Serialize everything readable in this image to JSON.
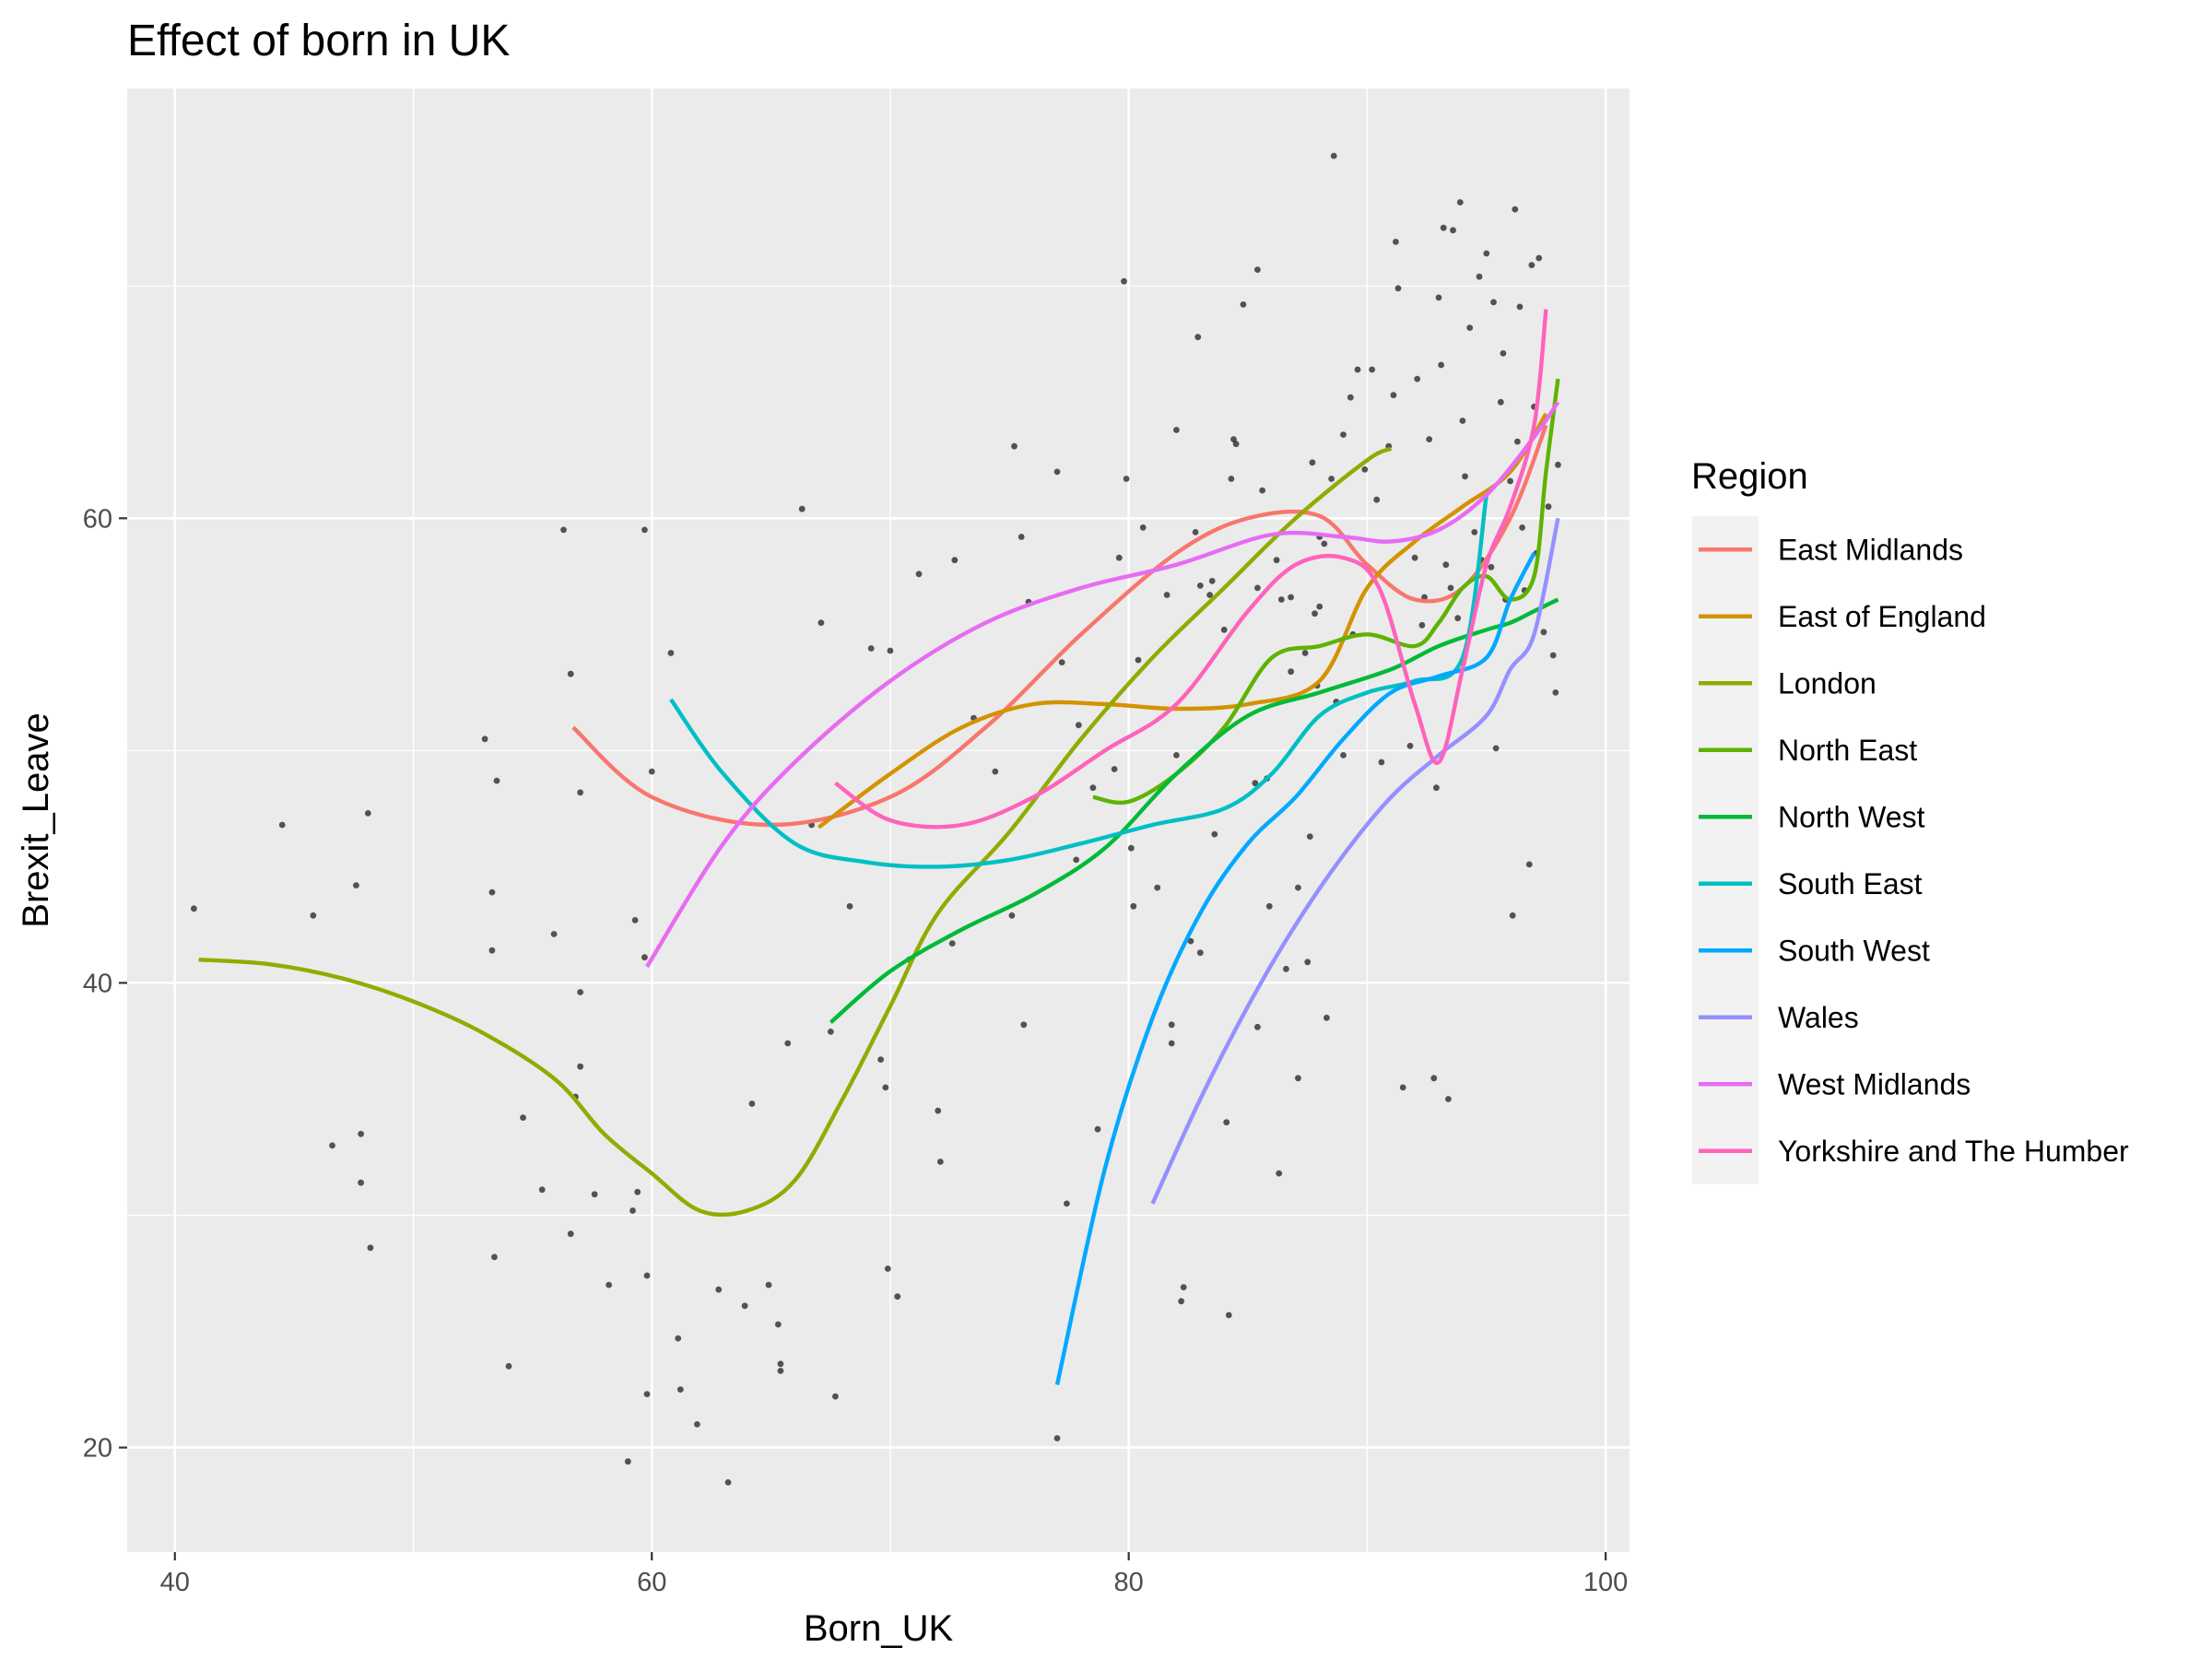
{
  "chart_data": {
    "type": "scatter",
    "title": "Effect of born in UK",
    "xlabel": "Born_UK",
    "ylabel": "Brexit_Leave",
    "xlim": [
      38,
      101
    ],
    "ylim": [
      15.5,
      78.5
    ],
    "x_ticks": [
      40,
      60,
      80,
      100
    ],
    "y_ticks": [
      20,
      40,
      60
    ],
    "grid": true,
    "legend_title": "Region",
    "legend_position": "right",
    "points": [
      [
        40.8,
        43.2
      ],
      [
        44.5,
        46.8
      ],
      [
        45.8,
        42.9
      ],
      [
        46.6,
        33
      ],
      [
        47.6,
        44.2
      ],
      [
        47.8,
        33.5
      ],
      [
        47.8,
        31.4
      ],
      [
        48.1,
        47.3
      ],
      [
        48.2,
        28.6
      ],
      [
        53,
        50.5
      ],
      [
        53.3,
        43.9
      ],
      [
        53.3,
        41.4
      ],
      [
        53.4,
        28.2
      ],
      [
        53.5,
        48.7
      ],
      [
        54,
        23.5
      ],
      [
        54.6,
        34.2
      ],
      [
        55.4,
        31.1
      ],
      [
        55.9,
        42.1
      ],
      [
        56.3,
        59.5
      ],
      [
        56.6,
        53.3
      ],
      [
        56.6,
        29.2
      ],
      [
        56.8,
        35.1
      ],
      [
        57,
        48.2
      ],
      [
        57,
        39.6
      ],
      [
        57,
        36.4
      ],
      [
        57.6,
        30.9
      ],
      [
        58.2,
        27
      ],
      [
        59,
        19.4
      ],
      [
        59.2,
        30.2
      ],
      [
        59.3,
        42.7
      ],
      [
        59.4,
        31
      ],
      [
        59.7,
        59.5
      ],
      [
        59.7,
        41.1
      ],
      [
        59.8,
        27.4
      ],
      [
        59.8,
        22.3
      ],
      [
        60,
        49.1
      ],
      [
        60.8,
        54.2
      ],
      [
        61.1,
        24.7
      ],
      [
        61.2,
        22.5
      ],
      [
        61.9,
        21
      ],
      [
        62.8,
        26.8
      ],
      [
        63.2,
        18.5
      ],
      [
        63.9,
        26.1
      ],
      [
        64.2,
        34.8
      ],
      [
        64.9,
        27
      ],
      [
        65.3,
        25.3
      ],
      [
        65.4,
        23.3
      ],
      [
        65.4,
        23.6
      ],
      [
        65.7,
        37.4
      ],
      [
        66.3,
        60.4
      ],
      [
        66.7,
        46.8
      ],
      [
        67.1,
        55.5
      ],
      [
        67.5,
        37.9
      ],
      [
        67.7,
        22.2
      ],
      [
        68.3,
        43.3
      ],
      [
        69.2,
        54.4
      ],
      [
        69.6,
        36.7
      ],
      [
        69.8,
        35.5
      ],
      [
        69.9,
        27.7
      ],
      [
        70,
        54.3
      ],
      [
        70.3,
        26.5
      ],
      [
        70.8,
        41
      ],
      [
        71.2,
        57.6
      ],
      [
        72,
        34.5
      ],
      [
        72.1,
        32.3
      ],
      [
        72.6,
        41.7
      ],
      [
        72.7,
        58.2
      ],
      [
        73.5,
        51.4
      ],
      [
        74.4,
        49.1
      ],
      [
        75.1,
        42.9
      ],
      [
        75.2,
        63.1
      ],
      [
        75.5,
        59.2
      ],
      [
        75.6,
        38.2
      ],
      [
        75.8,
        56.4
      ],
      [
        77,
        62
      ],
      [
        77,
        20.4
      ],
      [
        77.2,
        53.8
      ],
      [
        77.4,
        30.5
      ],
      [
        77.8,
        45.3
      ],
      [
        77.9,
        51.1
      ],
      [
        78.5,
        48.4
      ],
      [
        78.7,
        33.7
      ],
      [
        79.4,
        49.2
      ],
      [
        79.6,
        58.3
      ],
      [
        79.8,
        70.2
      ],
      [
        79.9,
        61.7
      ],
      [
        80.1,
        45.8
      ],
      [
        80.2,
        43.3
      ],
      [
        80.4,
        53.9
      ],
      [
        80.6,
        59.6
      ],
      [
        81.2,
        44.1
      ],
      [
        81.6,
        56.7
      ],
      [
        81.8,
        38.2
      ],
      [
        81.8,
        37.4
      ],
      [
        82,
        49.8
      ],
      [
        82,
        63.8
      ],
      [
        82.2,
        26.3
      ],
      [
        82.3,
        26.9
      ],
      [
        82.6,
        41.8
      ],
      [
        82.8,
        59.4
      ],
      [
        82.9,
        67.8
      ],
      [
        83,
        41.3
      ],
      [
        83,
        57.1
      ],
      [
        83.4,
        56.7
      ],
      [
        83.5,
        57.3
      ],
      [
        83.6,
        46.4
      ],
      [
        84,
        55.2
      ],
      [
        84.1,
        34
      ],
      [
        84.2,
        25.7
      ],
      [
        84.3,
        61.7
      ],
      [
        84.4,
        63.4
      ],
      [
        84.5,
        63.2
      ],
      [
        84.8,
        69.2
      ],
      [
        85.3,
        48.6
      ],
      [
        85.4,
        70.7
      ],
      [
        85.4,
        57
      ],
      [
        85.4,
        38.1
      ],
      [
        85.6,
        61.2
      ],
      [
        85.8,
        48.8
      ],
      [
        85.9,
        43.3
      ],
      [
        86.2,
        58.2
      ],
      [
        86.3,
        31.8
      ],
      [
        86.4,
        56.5
      ],
      [
        86.6,
        40.6
      ],
      [
        86.8,
        53.4
      ],
      [
        86.8,
        56.6
      ],
      [
        87.1,
        44.1
      ],
      [
        87.1,
        35.9
      ],
      [
        87.4,
        54.2
      ],
      [
        87.5,
        40.9
      ],
      [
        87.6,
        46.3
      ],
      [
        87.7,
        62.4
      ],
      [
        87.8,
        55.9
      ],
      [
        87.9,
        52.8
      ],
      [
        88,
        59.2
      ],
      [
        88,
        56.2
      ],
      [
        88.2,
        58.9
      ],
      [
        88.3,
        38.5
      ],
      [
        88.5,
        61.7
      ],
      [
        88.6,
        75.6
      ],
      [
        88.7,
        52.1
      ],
      [
        89,
        49.8
      ],
      [
        89,
        63.6
      ],
      [
        89.3,
        65.2
      ],
      [
        89.4,
        55
      ],
      [
        89.6,
        66.4
      ],
      [
        89.9,
        62.1
      ],
      [
        90.2,
        66.4
      ],
      [
        90.4,
        60.8
      ],
      [
        90.6,
        49.5
      ],
      [
        90.9,
        63.1
      ],
      [
        91.1,
        65.3
      ],
      [
        91.2,
        71.9
      ],
      [
        91.3,
        69.9
      ],
      [
        91.5,
        35.5
      ],
      [
        91.8,
        50.2
      ],
      [
        92,
        58.3
      ],
      [
        92.1,
        66
      ],
      [
        92.3,
        55.4
      ],
      [
        92.4,
        56.6
      ],
      [
        92.6,
        63.4
      ],
      [
        92.8,
        35.9
      ],
      [
        92.9,
        48.4
      ],
      [
        93,
        69.5
      ],
      [
        93.1,
        66.6
      ],
      [
        93.2,
        72.5
      ],
      [
        93.3,
        58
      ],
      [
        93.4,
        35
      ],
      [
        93.5,
        57
      ],
      [
        93.6,
        72.4
      ],
      [
        93.8,
        55.7
      ],
      [
        93.9,
        73.6
      ],
      [
        94,
        64.2
      ],
      [
        94.1,
        61.8
      ],
      [
        94.3,
        68.2
      ],
      [
        94.5,
        59.4
      ],
      [
        94.7,
        70.4
      ],
      [
        94.8,
        58.2
      ],
      [
        95,
        71.4
      ],
      [
        95.2,
        57.9
      ],
      [
        95.3,
        69.3
      ],
      [
        95.4,
        50.1
      ],
      [
        95.6,
        65
      ],
      [
        95.7,
        67.1
      ],
      [
        95.8,
        56.5
      ],
      [
        96,
        61.6
      ],
      [
        96.1,
        42.9
      ],
      [
        96.2,
        73.3
      ],
      [
        96.3,
        63.3
      ],
      [
        96.4,
        69.1
      ],
      [
        96.5,
        59.6
      ],
      [
        96.6,
        56.9
      ],
      [
        96.8,
        45.1
      ],
      [
        96.9,
        70.9
      ],
      [
        97,
        64.8
      ],
      [
        97.1,
        58.5
      ],
      [
        97.2,
        71.2
      ],
      [
        97.4,
        55.1
      ],
      [
        97.6,
        60.5
      ],
      [
        97.8,
        54.1
      ],
      [
        97.9,
        52.5
      ],
      [
        98,
        62.3
      ]
    ],
    "series": [
      {
        "name": "East Midlands",
        "color": "#F8766D",
        "x": [
          56.7,
          60,
          65,
          70,
          74,
          78,
          82,
          85,
          88,
          90,
          92,
          94,
          96,
          97.5
        ],
        "y": [
          51,
          48,
          46.8,
          48,
          51,
          55,
          58.5,
          60,
          60.1,
          58,
          56.5,
          57,
          60,
          64
        ]
      },
      {
        "name": "East of England",
        "color": "#D39200",
        "x": [
          67,
          70,
          73,
          76,
          79,
          82,
          85,
          88,
          90,
          92,
          94,
          96,
          97.5
        ],
        "y": [
          46.7,
          49,
          51,
          52,
          52,
          51.8,
          52,
          53,
          57,
          59,
          60.5,
          62,
          64.5
        ]
      },
      {
        "name": "London",
        "color": "#93AA00",
        "x": [
          41,
          44,
          47,
          50,
          53,
          56,
          58,
          60,
          62,
          64,
          66,
          68,
          70,
          72,
          75,
          78,
          81,
          84,
          87,
          90,
          91
        ],
        "y": [
          41,
          40.8,
          40.2,
          39.2,
          37.8,
          35.8,
          33.5,
          31.8,
          30.2,
          30.2,
          31.5,
          35,
          39,
          43,
          46.5,
          50.5,
          54,
          57,
          60,
          62.5,
          63
        ]
      },
      {
        "name": "North East",
        "color": "#5EB300",
        "x": [
          78.5,
          80,
          82,
          84,
          86,
          88,
          90,
          92,
          93,
          94,
          95,
          96,
          97,
          97.5,
          98
        ],
        "y": [
          48,
          47.8,
          49,
          51,
          54,
          54.5,
          55,
          54.5,
          55.5,
          57,
          57.5,
          56.5,
          57.5,
          62,
          66
        ]
      },
      {
        "name": "North West",
        "color": "#00BA38",
        "x": [
          67.5,
          70,
          73,
          76,
          79,
          82,
          85,
          88,
          91,
          93,
          95,
          96,
          97,
          98
        ],
        "y": [
          38.3,
          40.5,
          42.3,
          43.8,
          45.8,
          49,
          51.5,
          52.5,
          53.5,
          54.5,
          55.2,
          55.5,
          56,
          56.5
        ]
      },
      {
        "name": "South East",
        "color": "#00BFC4",
        "x": [
          60.8,
          63,
          66,
          69,
          72,
          75,
          78,
          81,
          84,
          86,
          88,
          90,
          92,
          94,
          95
        ],
        "y": [
          52.2,
          49,
          46,
          45.2,
          45,
          45.3,
          46,
          46.8,
          47.5,
          49,
          51.5,
          52.5,
          53,
          54,
          61
        ]
      },
      {
        "name": "South West",
        "color": "#00A9FF",
        "x": [
          77,
          79,
          81,
          83,
          85,
          87,
          89,
          91,
          93,
          95,
          96,
          97
        ],
        "y": [
          22.7,
          32,
          38.5,
          43,
          46,
          48,
          50.5,
          52.5,
          53.2,
          54,
          56.5,
          58.5
        ]
      },
      {
        "name": "Wales",
        "color": "#9590FF",
        "x": [
          81,
          83,
          85,
          87,
          89,
          91,
          93,
          95,
          96,
          97,
          98
        ],
        "y": [
          30.5,
          35,
          39,
          42.5,
          45.5,
          48,
          49.8,
          51.5,
          53.5,
          55,
          60
        ]
      },
      {
        "name": "West Midlands",
        "color": "#E76BF3",
        "x": [
          59.8,
          63,
          66,
          70,
          74,
          78,
          82,
          86,
          89,
          91,
          93,
          95,
          97,
          98
        ],
        "y": [
          40.7,
          46,
          49.5,
          53,
          55.5,
          57,
          58,
          59.3,
          59.2,
          59,
          59.5,
          61,
          63.5,
          65
        ]
      },
      {
        "name": "Yorkshire and The Humber",
        "color": "#FF62BC",
        "x": [
          67.7,
          70,
          73,
          76,
          79,
          82,
          85,
          87,
          89,
          90.5,
          92,
          93,
          94,
          95,
          96,
          97,
          97.5
        ],
        "y": [
          48.6,
          47,
          46.8,
          48,
          50,
          52,
          56,
          58,
          58.3,
          57,
          52,
          49.5,
          53.5,
          58,
          60.5,
          64,
          69
        ]
      }
    ]
  }
}
